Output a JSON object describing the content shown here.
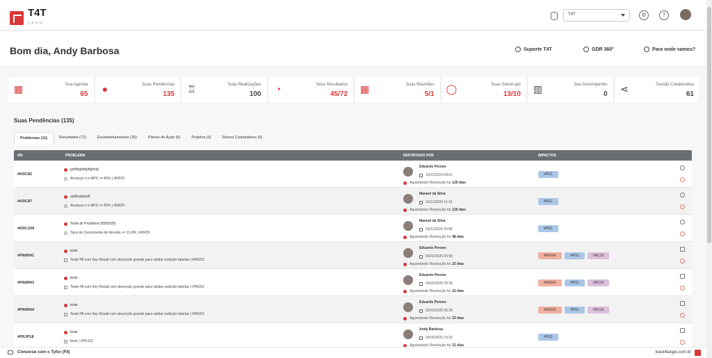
{
  "brand": {
    "name": "T4T",
    "sub": "TECH"
  },
  "header": {
    "workspace": "T4T"
  },
  "greeting": "Bom dia, Andy Barbosa",
  "links": [
    {
      "label": "Suporte T4T",
      "icon": "headset-icon"
    },
    {
      "label": "GDR 360°",
      "icon": "globe-icon"
    },
    {
      "label": "Para onde vamos?",
      "icon": "compass-icon"
    }
  ],
  "cards": [
    {
      "label": "Sua Agenda",
      "value": "65",
      "icon": "calendar-icon",
      "color": "#d93636",
      "glyph": "▦"
    },
    {
      "label": "Suas Pendências",
      "value": "135",
      "icon": "alert-icon",
      "color": "#d93636",
      "glyph": "●"
    },
    {
      "label": "Suas Realizações",
      "value": "100",
      "icon": "trophy-icon",
      "color": "#444444",
      "glyph": "♖"
    },
    {
      "label": "Seus Resultados",
      "value": "45/72",
      "icon": "gauge-icon",
      "color": "#d93636",
      "glyph": "◔"
    },
    {
      "label": "Suas Reuniões",
      "value": "5/1",
      "icon": "meeting-calendar-icon",
      "color": "#d93636",
      "glyph": "▦"
    },
    {
      "label": "Suas Stand-ups",
      "value": "13/10",
      "icon": "chat-bubble-icon",
      "color": "#d93636",
      "glyph": "◯"
    },
    {
      "label": "Seu Desempenho",
      "value": "0",
      "icon": "bar-chart-icon",
      "color": "#444444",
      "glyph": "▥"
    },
    {
      "label": "Gestão Colaborativa",
      "value": "61",
      "icon": "share-icon",
      "color": "#444444",
      "glyph": "⋖"
    }
  ],
  "section_title": "Suas Pendências (135)",
  "tabs": [
    "Problemas (11)",
    "Resultados (72)",
    "Encaminhamentos (35)",
    "Planos de Ação (6)",
    "Projetos (5)",
    "Riscos Corporativos (6)"
  ],
  "columns": {
    "id": "#ID",
    "problem": "PROBLEMA",
    "reported": "REPORTADO POR",
    "impacts": "IMPACTOS"
  },
  "rows": [
    {
      "id": "#KRC82",
      "title": "gsdfdgdsfgdfgdsfg",
      "sub": "Alcançar o e-NPS >= 80% | #KR29",
      "name": "Eduardo Perone",
      "date": "19/12/2024 09:01",
      "wait": "Aguardando Resolução há",
      "days": "129 dias",
      "impacts": [
        "#PG1"
      ],
      "subtype": "kr"
    },
    {
      "id": "#KRC87",
      "title": "asdfsdafsadf",
      "sub": "Alcançar o e-NPS >= 80% | #KR29",
      "name": "Manoel da Silva",
      "date": "19/12/2024 11:15",
      "wait": "Aguardando Resolução há",
      "days": "129 dias",
      "impacts": [
        "#PG1"
      ],
      "subtype": "kr"
    },
    {
      "id": "#KRC109",
      "title": "Teste de Problema 55555555",
      "sub": "Taxa de Crescimento de Receita >= 21,8% | #KR25",
      "name": "Manoel da Silva",
      "date": "19/11/2024 20:58",
      "wait": "Aguardando Resolução há",
      "days": "98 dias",
      "impacts": [
        "#PG1"
      ],
      "subtype": "kr"
    },
    {
      "id": "#PAM941",
      "title": "teste",
      "sub": "Teste PA com Key Result com descrição grande para validar exibição tabelas | #PA253",
      "name": "Eduardo Perone",
      "date": "03/02/2025 05:58",
      "wait": "Aguardando Resolução há",
      "days": "22 dias",
      "impacts": [
        "#KR141",
        "#PG1",
        "#RC10"
      ],
      "subtype": "pa"
    },
    {
      "id": "#PAM943",
      "title": "teste",
      "sub": "Teste PA com Key Result com descrição grande para validar exibição tabelas | #PA253",
      "name": "Eduardo Perone",
      "date": "03/02/2025 05:38",
      "wait": "Aguardando Resolução há",
      "days": "22 dias",
      "impacts": [
        "#KR141",
        "#PG1",
        "#RC10"
      ],
      "subtype": "pa"
    },
    {
      "id": "#PAM944",
      "title": "teste",
      "sub": "Teste PA com Key Result com descrição grande para validar exibição tabelas | #PA253",
      "name": "Eduardo Perone",
      "date": "03/02/2025 05:38",
      "wait": "Aguardando Resolução há",
      "days": "22 dias",
      "impacts": [
        "#KR141",
        "#PG1",
        "#RC10"
      ],
      "subtype": "pa"
    },
    {
      "id": "#PRJP18",
      "title": "teste",
      "sub": "teste | #PRJ10",
      "name": "Andy Barbosa",
      "date": "04/02/2025 15:22",
      "wait": "Aguardando Resolução há",
      "days": "21 dias",
      "impacts": [
        "#PG1"
      ],
      "subtype": "prj"
    }
  ],
  "footer": {
    "chat": "Converse com o Tyfor (F8)",
    "site": "track4target.com.br"
  }
}
